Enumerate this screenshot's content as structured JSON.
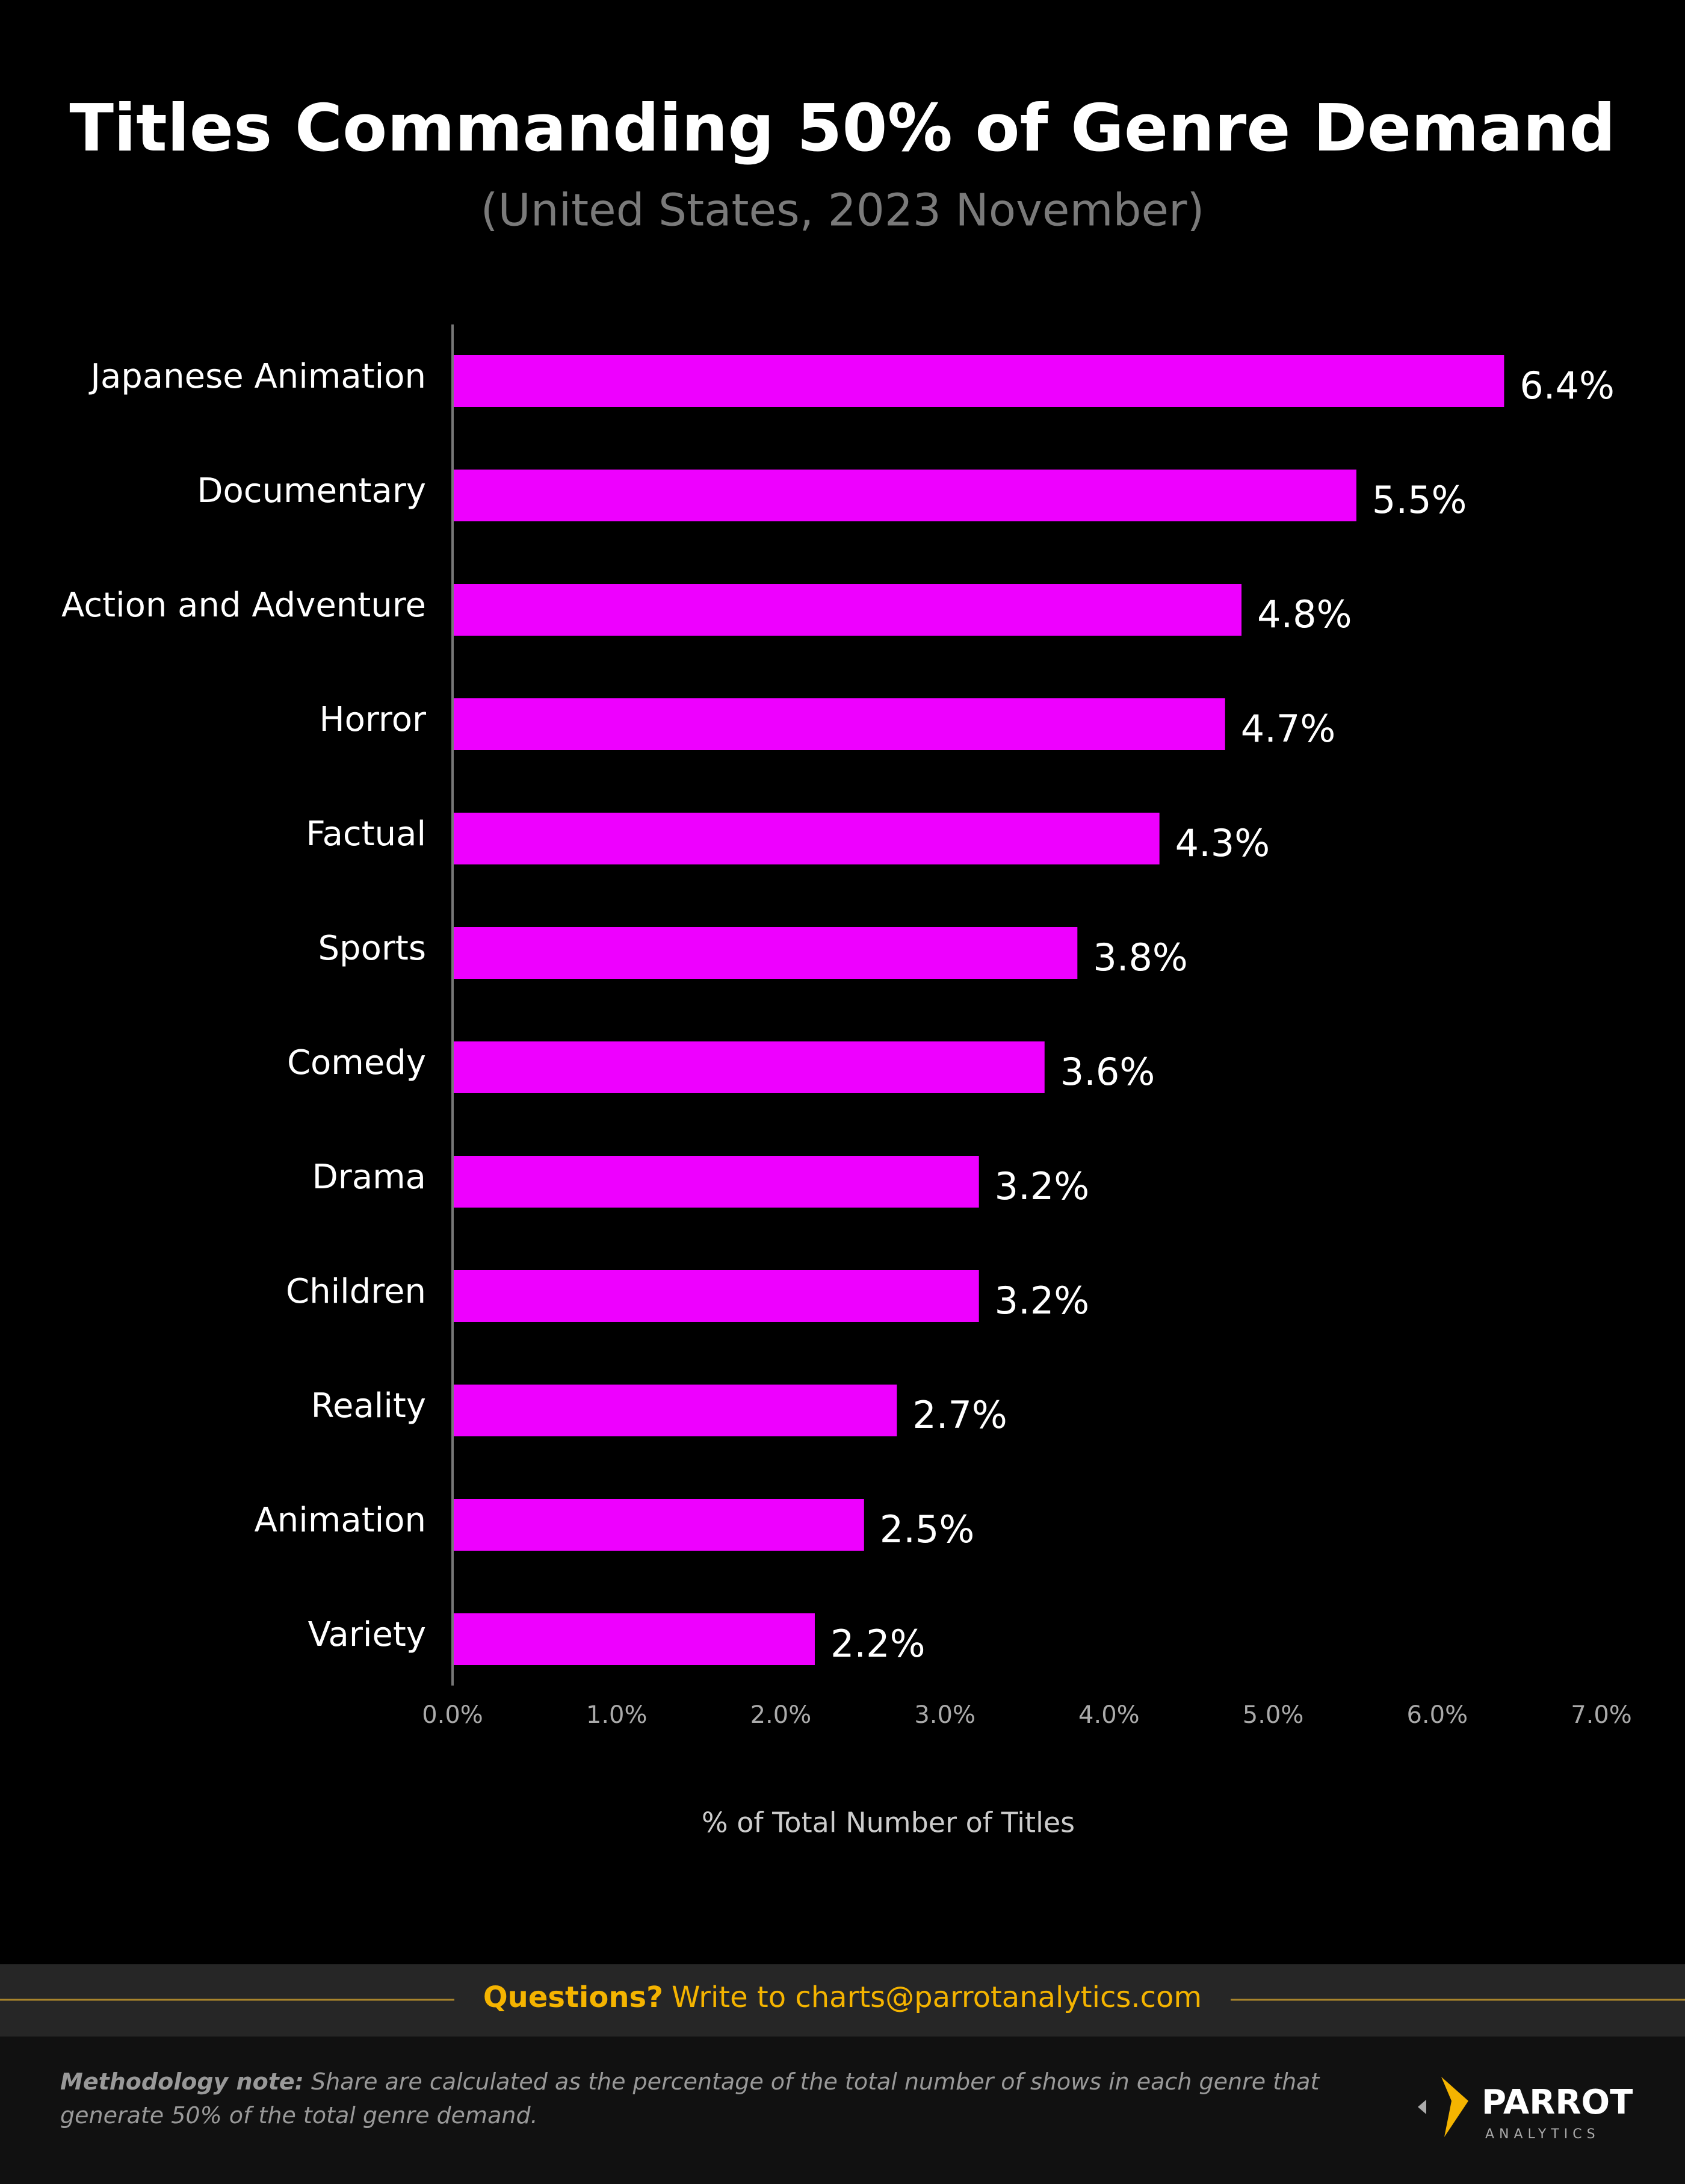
{
  "chart_data": {
    "type": "bar",
    "orientation": "horizontal",
    "title": "Titles Commanding 50% of Genre Demand",
    "subtitle": "(United States, 2023 November)",
    "categories": [
      "Japanese Animation",
      "Documentary",
      "Action and Adventure",
      "Horror",
      "Factual",
      "Sports",
      "Comedy",
      "Drama",
      "Children",
      "Reality",
      "Animation",
      "Variety"
    ],
    "values": [
      6.4,
      5.5,
      4.8,
      4.7,
      4.3,
      3.8,
      3.6,
      3.2,
      3.2,
      2.7,
      2.5,
      2.2
    ],
    "value_labels": [
      "6.4%",
      "5.5%",
      "4.8%",
      "4.7%",
      "4.3%",
      "3.8%",
      "3.6%",
      "3.2%",
      "3.2%",
      "2.7%",
      "2.5%",
      "2.2%"
    ],
    "color": "#ee00ff",
    "xlim": [
      0,
      7
    ],
    "xticks": [
      {
        "value": 0,
        "label": "0.0%"
      },
      {
        "value": 1,
        "label": "1.0%"
      },
      {
        "value": 2,
        "label": "2.0%"
      },
      {
        "value": 3,
        "label": "3.0%"
      },
      {
        "value": 4,
        "label": "4.0%"
      },
      {
        "value": 5,
        "label": "5.0%"
      },
      {
        "value": 6,
        "label": "6.0%"
      },
      {
        "value": 7,
        "label": "7.0%"
      }
    ],
    "x_label": "% of Total Number of Titles",
    "grid": false
  },
  "footer": {
    "question_lead": "Questions?",
    "question_text": "Write to charts@parrotanalytics.com",
    "note_lead": "Methodology note:",
    "note_text": "Share are calculated as the percentage of the total number of shows in each genre that generate 50% of the total genre demand.",
    "logo_name": "PARROT",
    "logo_sub": "ANALYTICS"
  }
}
